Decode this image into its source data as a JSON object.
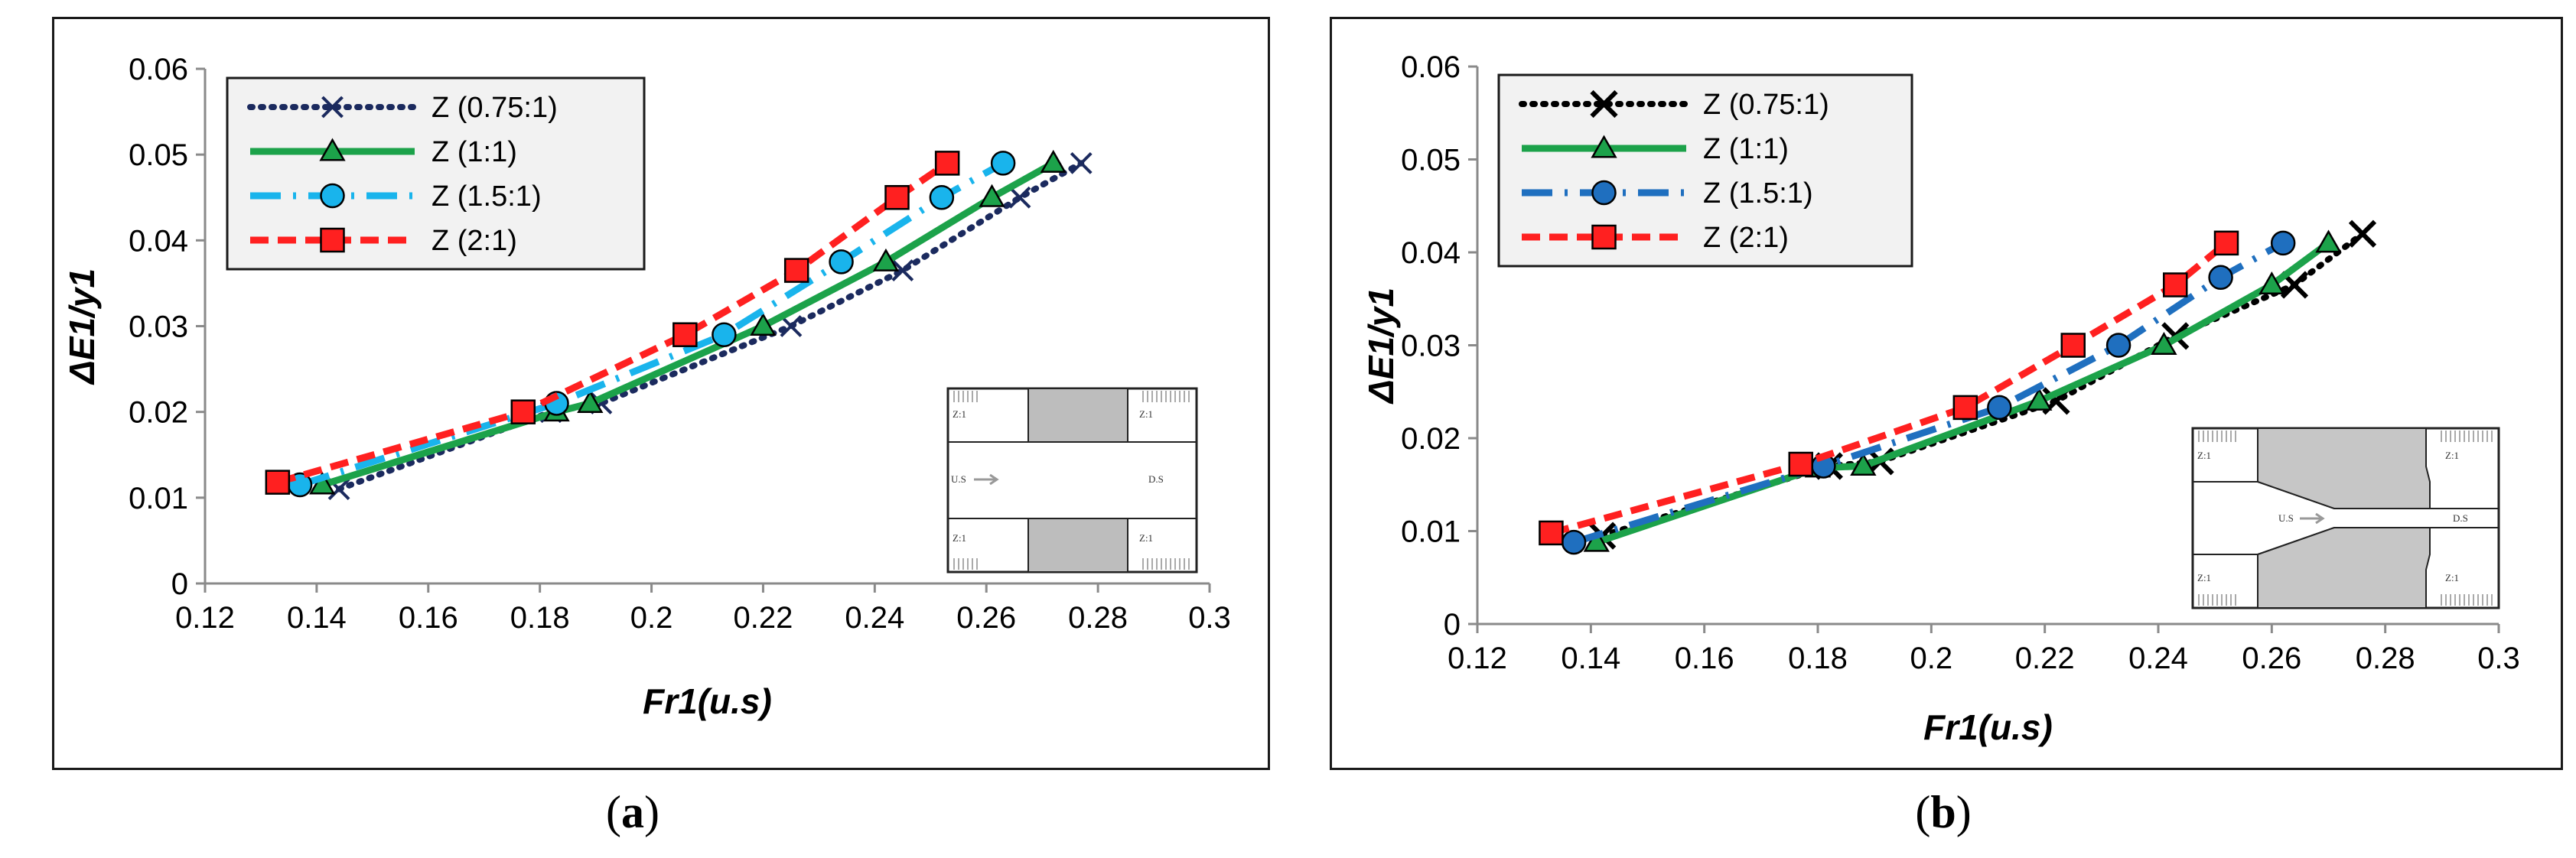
{
  "colors": {
    "z075_a": "#1b2a5e",
    "z075_b": "#000000",
    "z1": "#1ca24a",
    "z15_a": "#19b4ec",
    "z15_b": "#1f6fbf",
    "z2": "#ff2020",
    "marker_outline": "#000000"
  },
  "captions": [
    {
      "open": "(",
      "letter": "a",
      "close": ")"
    },
    {
      "open": "(",
      "letter": "b",
      "close": ")"
    }
  ],
  "chart_data": [
    {
      "type": "line",
      "panel": "a",
      "xlabel": "Fr1(u.s)",
      "ylabel": "ΔE1/y1",
      "xlim": [
        0.12,
        0.3
      ],
      "ylim": [
        0,
        0.06
      ],
      "xticks": [
        "0.12",
        "0.14",
        "0.16",
        "0.18",
        "0.2",
        "0.22",
        "0.24",
        "0.26",
        "0.28",
        "0.3"
      ],
      "yticks": [
        "0",
        "0.01",
        "0.02",
        "0.03",
        "0.04",
        "0.05",
        "0.06"
      ],
      "grid": "none",
      "legend": "top-left",
      "inset_labels": {
        "z_label": "Z:1",
        "us": "U.S",
        "ds": "D.S"
      },
      "series": [
        {
          "name": "Z (0.75:1)",
          "marker": "x",
          "line": "dotted",
          "x": [
            0.144,
            0.182,
            0.191,
            0.225,
            0.245,
            0.266,
            0.277
          ],
          "y": [
            0.011,
            0.02,
            0.021,
            0.03,
            0.0365,
            0.045,
            0.049
          ]
        },
        {
          "name": "Z (1:1)",
          "marker": "triangle",
          "line": "solid",
          "x": [
            0.141,
            0.183,
            0.189,
            0.22,
            0.242,
            0.261,
            0.272
          ],
          "y": [
            0.0115,
            0.02,
            0.021,
            0.03,
            0.0375,
            0.045,
            0.049
          ]
        },
        {
          "name": "Z (1.5:1)",
          "marker": "circle",
          "line": "dashdot",
          "x": [
            0.137,
            0.183,
            0.213,
            0.234,
            0.252,
            0.263
          ],
          "y": [
            0.0115,
            0.021,
            0.029,
            0.0375,
            0.045,
            0.049
          ]
        },
        {
          "name": "Z (2:1)",
          "marker": "square",
          "line": "dashed",
          "x": [
            0.133,
            0.177,
            0.206,
            0.226,
            0.244,
            0.253
          ],
          "y": [
            0.0118,
            0.02,
            0.029,
            0.0365,
            0.045,
            0.049
          ]
        }
      ]
    },
    {
      "type": "line",
      "panel": "b",
      "xlabel": "Fr1(u.s)",
      "ylabel": "ΔE1/y1",
      "xlim": [
        0.12,
        0.3
      ],
      "ylim": [
        0,
        0.06
      ],
      "xticks": [
        "0.12",
        "0.14",
        "0.16",
        "0.18",
        "0.2",
        "0.22",
        "0.24",
        "0.26",
        "0.28",
        "0.3"
      ],
      "yticks": [
        "0",
        "0.01",
        "0.02",
        "0.03",
        "0.04",
        "0.05",
        "0.06"
      ],
      "grid": "none",
      "legend": "top-left",
      "inset_labels": {
        "z_label": "Z:1",
        "us": "U.S",
        "ds": "D.S"
      },
      "series": [
        {
          "name": "Z (0.75:1)",
          "marker": "x",
          "line": "dotted",
          "x": [
            0.142,
            0.182,
            0.191,
            0.222,
            0.243,
            0.264,
            0.276
          ],
          "y": [
            0.0095,
            0.017,
            0.0175,
            0.024,
            0.031,
            0.0365,
            0.042
          ]
        },
        {
          "name": "Z (1:1)",
          "marker": "triangle",
          "line": "solid",
          "x": [
            0.141,
            0.18,
            0.188,
            0.219,
            0.241,
            0.26,
            0.27
          ],
          "y": [
            0.0088,
            0.0168,
            0.017,
            0.024,
            0.03,
            0.0365,
            0.041
          ]
        },
        {
          "name": "Z (1.5:1)",
          "marker": "circle",
          "line": "dashdot",
          "x": [
            0.137,
            0.181,
            0.212,
            0.233,
            0.251,
            0.262
          ],
          "y": [
            0.0088,
            0.017,
            0.0233,
            0.03,
            0.0373,
            0.041
          ]
        },
        {
          "name": "Z (2:1)",
          "marker": "square",
          "line": "dashed",
          "x": [
            0.133,
            0.177,
            0.206,
            0.225,
            0.243,
            0.252
          ],
          "y": [
            0.0098,
            0.0172,
            0.0233,
            0.03,
            0.0365,
            0.041
          ]
        }
      ]
    }
  ]
}
